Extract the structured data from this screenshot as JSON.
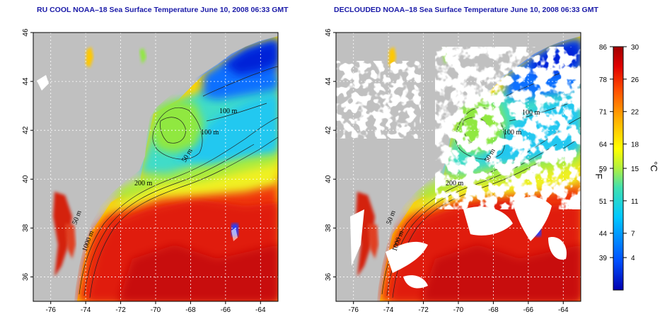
{
  "panels": [
    {
      "title": "RU COOL NOAA–18 Sea Surface Temperature June 10, 2008 06:33 GMT",
      "clouds_masked": false
    },
    {
      "title": "DECLOUDED NOAA–18 Sea Surface Temperature June 10, 2008 06:33 GMT",
      "clouds_masked": true
    }
  ],
  "map": {
    "lon_ticks": [
      "-76",
      "-74",
      "-72",
      "-70",
      "-68",
      "-66",
      "-64"
    ],
    "lat_ticks": [
      "36",
      "38",
      "40",
      "42",
      "44",
      "46"
    ],
    "lon_range": [
      -77,
      -63
    ],
    "lat_range": [
      35,
      46
    ],
    "grid": true,
    "land_color": "#bdbdbd",
    "contours": [
      "50 m",
      "100 m",
      "100 m",
      "200 m",
      "50 m",
      "1000 m"
    ]
  },
  "colorbar": {
    "fahrenheit_ticks": [
      "86",
      "78",
      "71",
      "64",
      "59",
      "51",
      "44",
      "39"
    ],
    "celsius_ticks": [
      "30",
      "26",
      "22",
      "18",
      "15",
      "11",
      "7",
      "4"
    ],
    "fahrenheit_unit": "°F",
    "celsius_unit": "°C",
    "range_c": [
      0,
      30
    ],
    "colors": [
      "#0000b0",
      "#0050ff",
      "#00c8ff",
      "#40e0b0",
      "#b0f040",
      "#ffff00",
      "#ffb000",
      "#ff5000",
      "#e00000",
      "#a00000"
    ]
  }
}
